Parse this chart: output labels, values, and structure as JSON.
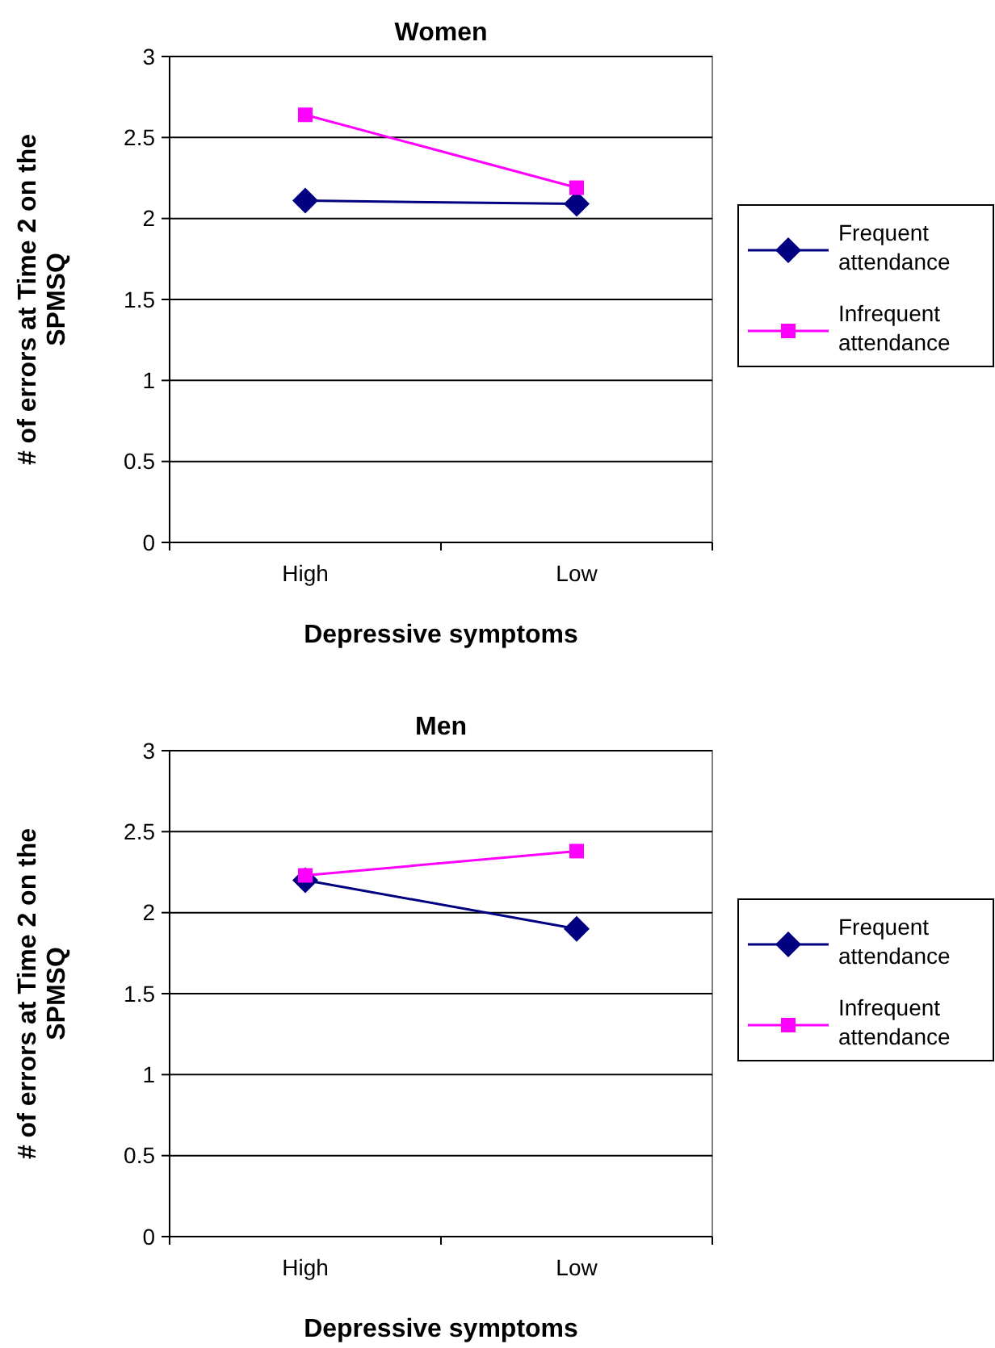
{
  "chart_data": [
    {
      "type": "line",
      "title": "Women",
      "xlabel": "Depressive symptoms",
      "ylabel": "# of errors at Time 2 on the SPMSQ",
      "categories": [
        "High",
        "Low"
      ],
      "series": [
        {
          "name": "Frequent attendance",
          "color": "#000080",
          "marker": "diamond",
          "values": [
            2.11,
            2.09
          ]
        },
        {
          "name": "Infrequent attendance",
          "color": "#ff00ff",
          "marker": "square",
          "values": [
            2.64,
            2.19
          ]
        }
      ],
      "ylim": [
        0,
        3
      ],
      "yticks": [
        0,
        0.5,
        1,
        1.5,
        2,
        2.5,
        3
      ],
      "grid": "y",
      "legend": "right"
    },
    {
      "type": "line",
      "title": "Men",
      "xlabel": "Depressive symptoms",
      "ylabel": "# of errors at Time 2 on the SPMSQ",
      "categories": [
        "High",
        "Low"
      ],
      "series": [
        {
          "name": "Frequent attendance",
          "color": "#000080",
          "marker": "diamond",
          "values": [
            2.2,
            1.9
          ]
        },
        {
          "name": "Infrequent attendance",
          "color": "#ff00ff",
          "marker": "square",
          "values": [
            2.23,
            2.38
          ]
        }
      ],
      "ylim": [
        0,
        3
      ],
      "yticks": [
        0,
        0.5,
        1,
        1.5,
        2,
        2.5,
        3
      ],
      "grid": "y",
      "legend": "right"
    }
  ]
}
